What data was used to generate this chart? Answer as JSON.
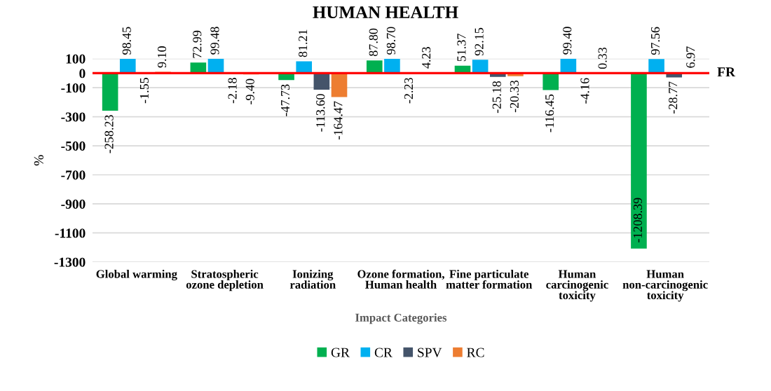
{
  "chart_data": {
    "type": "bar",
    "title": "HUMAN HEALTH",
    "xlabel": "Impact Categories",
    "ylabel": "%",
    "categories": [
      "Global warming",
      "Stratospheric ozone depletion",
      "Ionizing radiation",
      "Ozone formation, Human health",
      "Fine particulate matter formation",
      "Human carcinogenic toxicity",
      "Human non-carcinogenic toxicity"
    ],
    "series": [
      {
        "name": "GR",
        "color": "#00b050",
        "values": [
          -258.23,
          72.99,
          -47.73,
          87.8,
          51.37,
          -116.45,
          -1208.39
        ],
        "value_labels": [
          "-258.23",
          "72.99",
          "-47.73",
          "87.80",
          "51.37",
          "-116.45",
          "-1208.39"
        ]
      },
      {
        "name": "CR",
        "color": "#00b0f0",
        "values": [
          98.45,
          99.48,
          81.21,
          98.7,
          92.15,
          99.4,
          97.56
        ],
        "value_labels": [
          "98.45",
          "99.48",
          "81.21",
          "98.70",
          "92.15",
          "99.40",
          "97.56"
        ]
      },
      {
        "name": "SPV",
        "color": "#44546a",
        "values": [
          -1.55,
          -2.18,
          -113.6,
          -2.23,
          -25.18,
          -4.16,
          -28.77
        ],
        "value_labels": [
          "-1.55",
          "-2.18",
          "-113.60",
          "-2.23",
          "-25.18",
          "-4.16",
          "-28.77"
        ]
      },
      {
        "name": "RC",
        "color": "#ed7d31",
        "values": [
          9.1,
          -9.4,
          -164.47,
          4.23,
          -20.33,
          0.33,
          6.97
        ],
        "value_labels": [
          "9.10",
          "-9.40",
          "-164.47",
          "4.23",
          "-20.33",
          "0.33",
          "6.97"
        ]
      }
    ],
    "ylim": [
      -1300,
      100
    ],
    "yticks": [
      100,
      0,
      -100,
      -300,
      -500,
      -700,
      -900,
      -1100,
      -1300
    ],
    "ref_lines": [
      {
        "axis": "y",
        "value": 0,
        "label": "FR",
        "color": "#ff0000"
      }
    ],
    "grid": "y",
    "legend": "bottom"
  }
}
